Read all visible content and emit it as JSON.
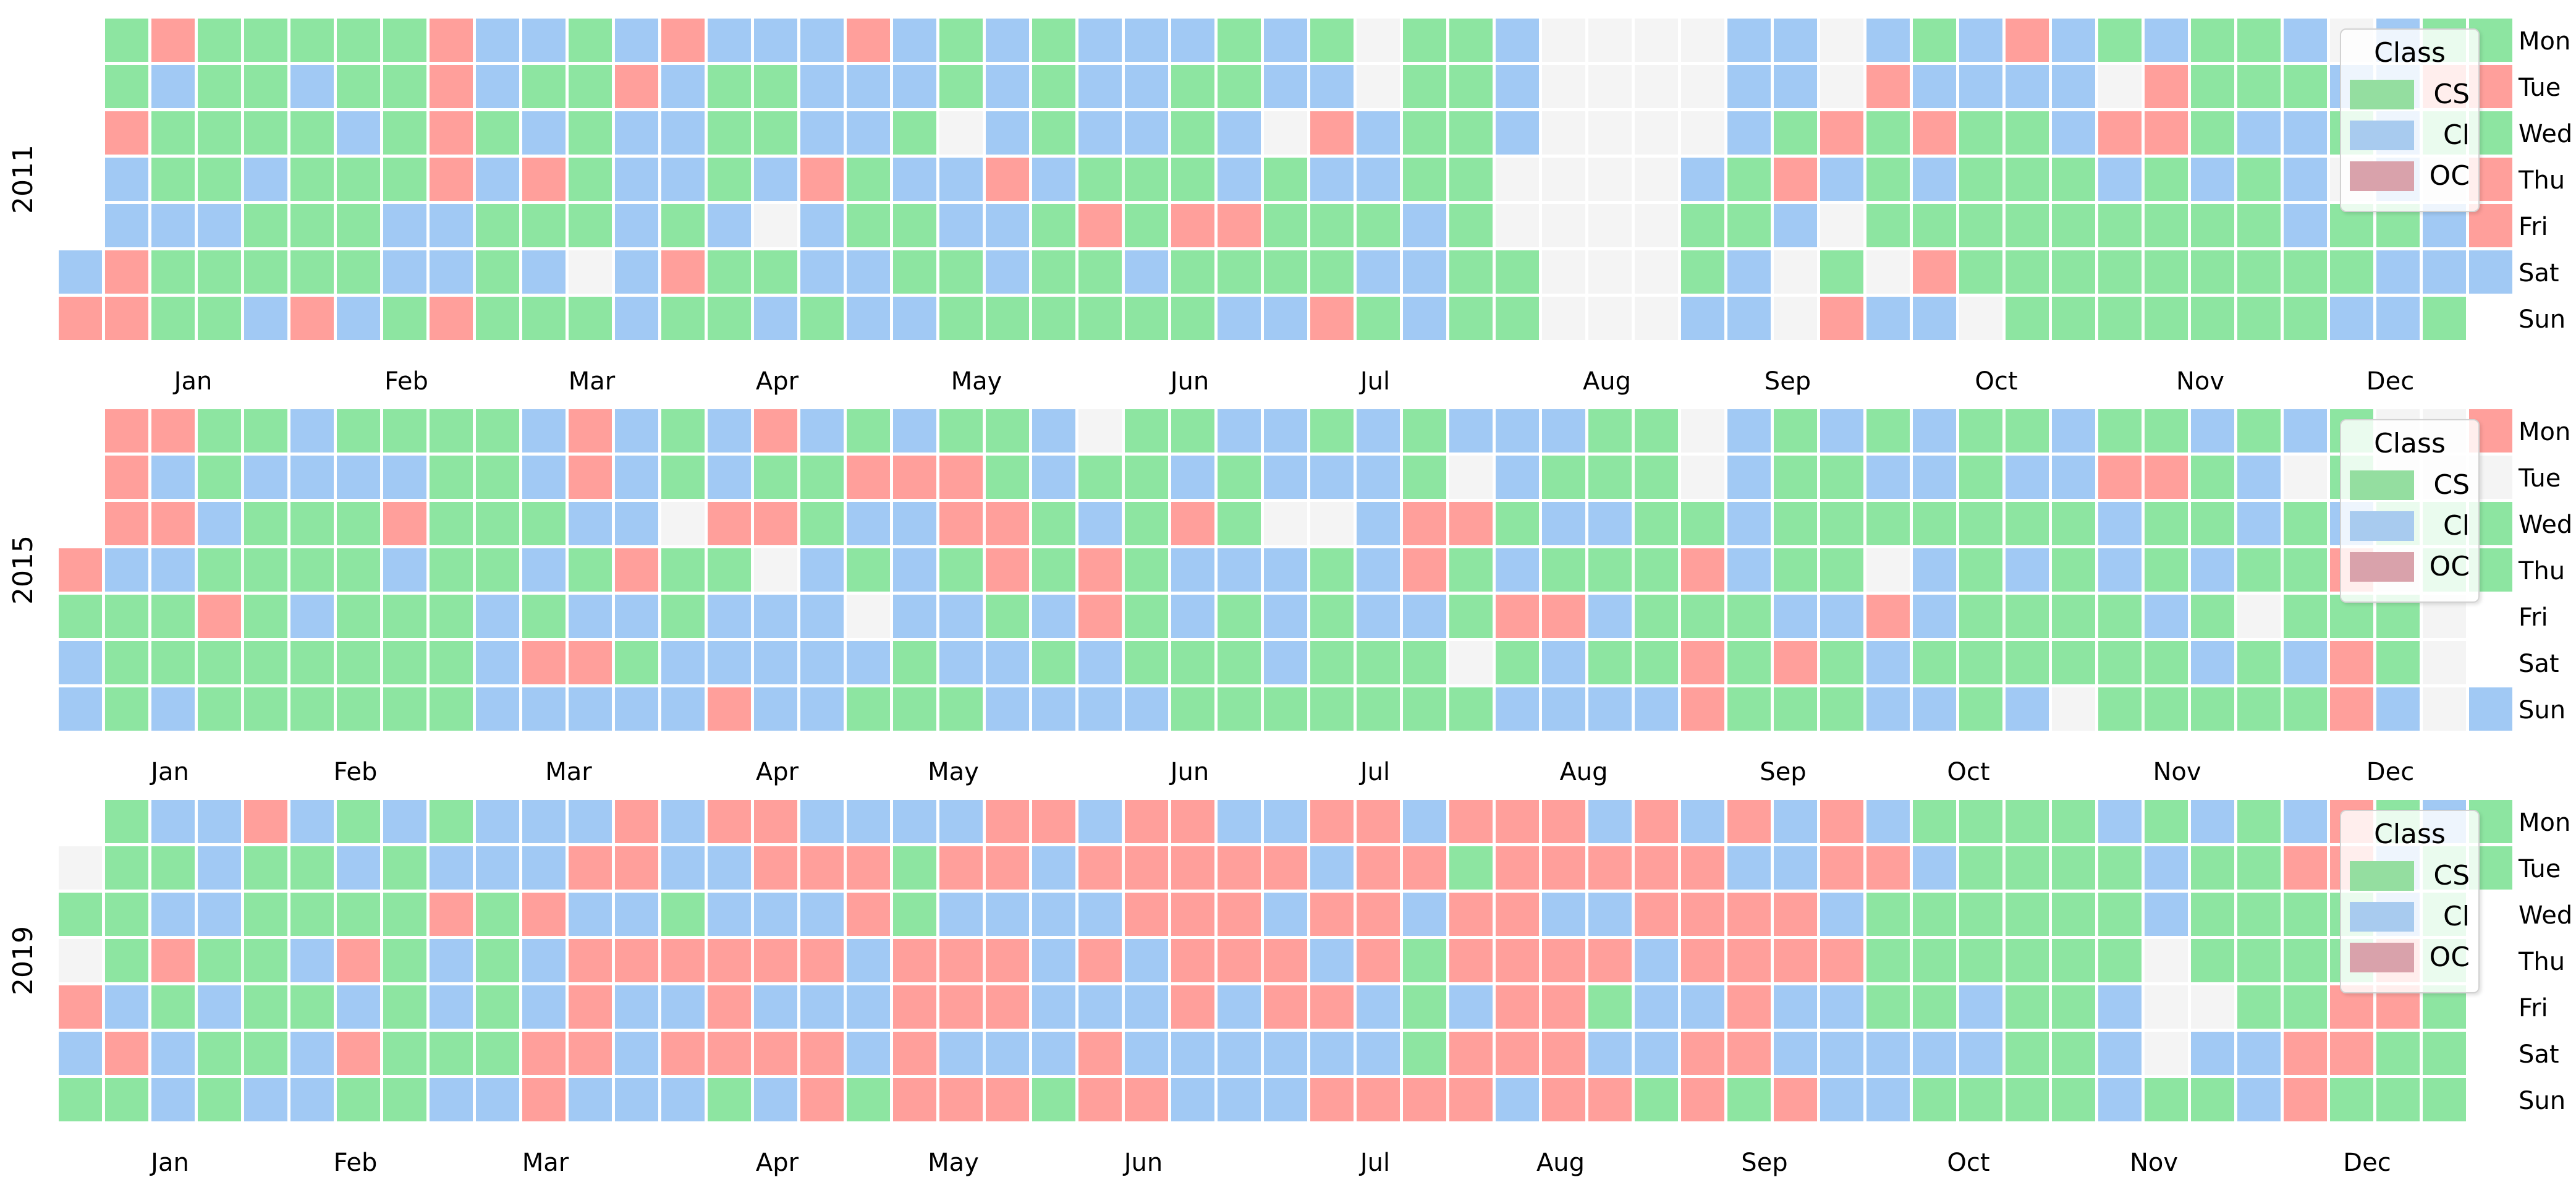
{
  "chart_data": {
    "type": "heatmap",
    "description": "Three calendar heatmaps (weeks of year x weekday) showing class held per day",
    "grid": {
      "columns": 53,
      "rows": 7,
      "grid_on": false
    },
    "legend": {
      "title": "Class",
      "position": "top-right overlay of each panel",
      "entries": [
        {
          "label": "CS",
          "color": "#8de5a1",
          "swatch_color": "#94dea0"
        },
        {
          "label": "Cl",
          "color": "#a1c9f4",
          "swatch_color": "#a8cbef"
        },
        {
          "label": "OC",
          "color": "#ff9f9b",
          "swatch_color": "#d9a2ab"
        }
      ]
    },
    "value_colors": {
      "G": "#8de5a1",
      "B": "#a1c9f4",
      "R": "#ff9f9b",
      ".": "#f4f4f4"
    },
    "value_legend_map": {
      "G": "CS",
      "B": "Cl",
      "R": "OC",
      ".": "no data",
      " ": "outside year"
    },
    "day_labels": [
      "Mon",
      "Tue",
      "Wed",
      "Thu",
      "Fri",
      "Sat",
      "Sun"
    ],
    "month_labels": [
      "Jan",
      "Feb",
      "Mar",
      "Apr",
      "May",
      "Jun",
      "Jul",
      "Aug",
      "Sep",
      "Oct",
      "Nov",
      "Dec"
    ],
    "panels": [
      {
        "year": "2011",
        "month_positions": [
          2.4,
          7.0,
          11.0,
          15.0,
          19.3,
          23.9,
          27.9,
          32.9,
          36.8,
          41.3,
          45.7,
          49.8
        ],
        "rows": {
          "Mon": " GRGGGGGRBBGBRBBBRBGBGBBBGBG.GGB....BB.BGBRBGBGGB.BGG",
          "Tue": " GBGGBGGRBGGRBGGBBBGBGBBGGBB.GGB....BB.RBBBB.RGGGBBRR",
          "Wed": " RGGGGBGRGBGBBGGBBG.BGBBGB.RBGGB....BGRGRGGBRRGBBGBGG",
          "Thu": " BGGBGGGRBRGBBGBRGBBRBGGGBGBBGG....BGRBGBGGGBGBGB.B.R",
          "Fri": " BBBGGGBBGGGBGB.BGGBBGRGRRGGGBG....GGB.GGGGGGGGGBGGBR",
          "Sat": "BRGGGGGBBGB.BRGGBBGGBGGBGGGGBBGG...GB.G.RGGGGGGGGGBBB",
          "Sun": "RRGGBRBGRGGGBGGBGBBGGGGGGBBRGBGG...BB.RBB.GGGGGGGBBG "
        }
      },
      {
        "year": "2015",
        "month_positions": [
          1.9,
          5.9,
          10.5,
          15.0,
          18.8,
          23.9,
          27.9,
          32.4,
          36.7,
          40.7,
          45.2,
          49.8
        ],
        "rows": {
          "Mon": " RRGGBGGGGBRBGBRBGBGGB.GGBBGBGBBBGG.BGBGBGGBGGBGBG..R",
          "Tue": " RBGBBBBGGBRBGBGGRRRGBGGBGBBBG.BGGG.BGGBBGBBRRGB.G...",
          "Wed": " RRBGGGRGGGBB.RRGBBRRGBGRG..BRRGBBGGBGGGGGGGBGGBGBGGG",
          "Thu": "RBBGGGGBGGBGRGG.BGBGRGRGBBBGBRGBGGGRBGG.BGBGBGBGGR.GG",
          "Fri": "GGGRGBGGGBGBBGBBB.BBGBRGBGBGBBGRRBGGGBBRBGGGGBG.GGG. ",
          "Sat": "BGGGGGGGGBRRGBBBBBGBBGBGGGBGGG.GBGGRGRGBGGGGGGBGBRG. ",
          "Sun": "BGBGGGGGGBBBBBRBBGGGBBBBGGGGGGGBBBBRGGGBBGB.GGGGGRB.B"
        }
      },
      {
        "year": "2019",
        "month_positions": [
          1.9,
          5.9,
          10.0,
          15.0,
          18.8,
          22.9,
          27.9,
          31.9,
          36.3,
          40.7,
          44.7,
          49.3
        ],
        "rows": {
          "Mon": " GBBRBGBGBBBRBRRBBBBRRBRRBBRRBRRRBRBRBRBGGGGBGBGBRGBG",
          "Tue": ".GGBGGBGBBBRRBBRRRGRRBRRRRRBRRGRRRRRBBRRBGGGGBGGRRBGG",
          "Wed": "GGBBGGGGRGRBBGBBBRGBBBBRRRBRRBRRBBRRRRBGGGGGGBGGGGBG ",
          "Thu": ".GRGGBRGBGBRRRRRRBRRRBRBRRRBRGRRRRBRRRRGGGGGG.GGGGRG ",
          "Fri": "RBGBGGBGBGBRBBRBBBRRRBBBRBRRBGBRRGBBRBBGGBGGB..GGRRG ",
          "Sat": "BRBGGBRGGGRRBRRRRBRBBBRBBBBBBGRRRBBRRBBBBBGGB.BBRRGG ",
          "Sun": "GGBGBBGGBBRBBBGBRGRRRGRRBBBRRRRBRRGRGRBBGGGGBGGBRGGG "
        }
      }
    ]
  }
}
